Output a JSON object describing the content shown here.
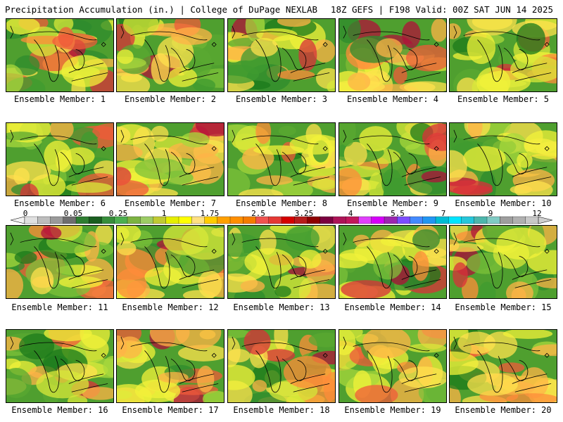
{
  "header": {
    "title": "Precipitation Accumulation (in.) | College of DuPage NEXLAB",
    "run_info": "18Z GEFS | F198 Valid: 00Z SAT JUN 14 2025"
  },
  "colorbar": {
    "tick_labels": [
      "0",
      "0.05",
      "0.25",
      "1",
      "1.75",
      "2.5",
      "3.25",
      "4",
      "5.5",
      "7",
      "9",
      "12"
    ],
    "colors": [
      "#e0e0e0",
      "#bdbdbd",
      "#9a9a9a",
      "#6e6e6e",
      "#2e7d32",
      "#1b5e20",
      "#388e3c",
      "#4caf50",
      "#7cb342",
      "#9ccc65",
      "#c0ca33",
      "#e6ee00",
      "#ffff00",
      "#ffe082",
      "#ffcc00",
      "#ffa000",
      "#ff8f00",
      "#f57c00",
      "#ef5350",
      "#e53935",
      "#d50000",
      "#b71c1c",
      "#8e0000",
      "#7b0040",
      "#ad1457",
      "#c2185b",
      "#e040fb",
      "#d500f9",
      "#9c27b0",
      "#7c4dff",
      "#448aff",
      "#2196f3",
      "#00bcd4",
      "#00e5ff",
      "#26c6da",
      "#4db6ac",
      "#80cbc4",
      "#9e9e9e",
      "#b0b0b0",
      "#c8c8c8"
    ]
  },
  "panels": [
    {
      "label": "Ensemble Member: 1"
    },
    {
      "label": "Ensemble Member: 2"
    },
    {
      "label": "Ensemble Member: 3"
    },
    {
      "label": "Ensemble Member: 4"
    },
    {
      "label": "Ensemble Member: 5"
    },
    {
      "label": "Ensemble Member: 6"
    },
    {
      "label": "Ensemble Member: 7"
    },
    {
      "label": "Ensemble Member: 8"
    },
    {
      "label": "Ensemble Member: 9"
    },
    {
      "label": "Ensemble Member: 10"
    },
    {
      "label": "Ensemble Member: 11"
    },
    {
      "label": "Ensemble Member: 12"
    },
    {
      "label": "Ensemble Member: 13"
    },
    {
      "label": "Ensemble Member: 14"
    },
    {
      "label": "Ensemble Member: 15"
    },
    {
      "label": "Ensemble Member: 16"
    },
    {
      "label": "Ensemble Member: 17"
    },
    {
      "label": "Ensemble Member: 18"
    },
    {
      "label": "Ensemble Member: 19"
    },
    {
      "label": "Ensemble Member: 20"
    }
  ]
}
